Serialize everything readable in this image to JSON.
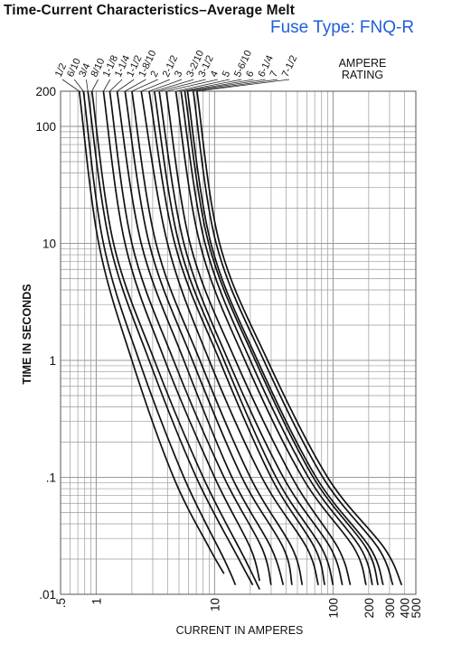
{
  "title": "Time-Current Characteristics–Average Melt",
  "subtitle": "Fuse Type: FNQ-R",
  "legend_title_line1": "AMPERE",
  "legend_title_line2": "RATING",
  "colors": {
    "subtitle": "#1f5fd6",
    "curves": "#111111",
    "grid": "#9a9a9a"
  },
  "chart_data": {
    "type": "line",
    "title": "Time-Current Characteristics–Average Melt",
    "subtitle": "Fuse Type: FNQ-R",
    "xlabel": "CURRENT IN AMPERES",
    "ylabel": "TIME IN SECONDS",
    "x_scale": "log",
    "y_scale": "log",
    "xlim": [
      0.5,
      500
    ],
    "ylim": [
      0.01,
      200
    ],
    "grid": true,
    "legend_title": "AMPERE RATING",
    "legend_placement": "top",
    "x_ticks": [
      {
        "value": 0.5,
        "label": ".5"
      },
      {
        "value": 1,
        "label": "1"
      },
      {
        "value": 10,
        "label": "10"
      },
      {
        "value": 100,
        "label": "100"
      },
      {
        "value": 200,
        "label": "200"
      },
      {
        "value": 300,
        "label": "300"
      },
      {
        "value": 400,
        "label": "400"
      },
      {
        "value": 500,
        "label": "500"
      }
    ],
    "y_ticks": [
      {
        "value": 0.01,
        "label": ".01"
      },
      {
        "value": 0.1,
        "label": ".1"
      },
      {
        "value": 1,
        "label": "1"
      },
      {
        "value": 10,
        "label": "10"
      },
      {
        "value": 100,
        "label": "100"
      },
      {
        "value": 200,
        "label": "200"
      }
    ],
    "series": [
      {
        "name": "1/2",
        "points": [
          [
            0.72,
            200
          ],
          [
            1.05,
            10
          ],
          [
            2.0,
            1
          ],
          [
            4.5,
            0.1
          ],
          [
            9.0,
            0.025
          ],
          [
            12.0,
            0.015
          ]
        ]
      },
      {
        "name": "6/10",
        "points": [
          [
            0.78,
            200
          ],
          [
            1.15,
            10
          ],
          [
            2.3,
            1
          ],
          [
            5.5,
            0.1
          ],
          [
            12.0,
            0.02
          ],
          [
            15.0,
            0.012
          ]
        ]
      },
      {
        "name": "3/4",
        "points": [
          [
            0.85,
            200
          ],
          [
            1.3,
            10
          ],
          [
            2.8,
            1
          ],
          [
            7.0,
            0.1
          ],
          [
            16.0,
            0.02
          ],
          [
            21.0,
            0.012
          ]
        ]
      },
      {
        "name": "8/10",
        "points": [
          [
            0.92,
            200
          ],
          [
            1.4,
            10
          ],
          [
            3.1,
            1
          ],
          [
            8.0,
            0.1
          ],
          [
            18.0,
            0.02
          ],
          [
            24.0,
            0.011
          ]
        ]
      },
      {
        "name": "1-1/8",
        "points": [
          [
            1.15,
            200
          ],
          [
            1.75,
            10
          ],
          [
            3.8,
            1
          ],
          [
            10.0,
            0.1
          ],
          [
            20.0,
            0.025
          ],
          [
            24.0,
            0.013
          ]
        ]
      },
      {
        "name": "1-1/4",
        "points": [
          [
            1.3,
            200
          ],
          [
            2.0,
            10
          ],
          [
            4.5,
            1
          ],
          [
            12.0,
            0.1
          ],
          [
            25.0,
            0.025
          ],
          [
            30.0,
            0.012
          ]
        ]
      },
      {
        "name": "1-1/2",
        "points": [
          [
            1.5,
            200
          ],
          [
            2.4,
            10
          ],
          [
            5.5,
            1
          ],
          [
            14.0,
            0.1
          ],
          [
            30.0,
            0.025
          ],
          [
            38.0,
            0.012
          ]
        ]
      },
      {
        "name": "1-8/10",
        "points": [
          [
            1.75,
            200
          ],
          [
            2.8,
            10
          ],
          [
            6.5,
            1
          ],
          [
            17.0,
            0.1
          ],
          [
            38.0,
            0.025
          ],
          [
            45.0,
            0.012
          ]
        ]
      },
      {
        "name": "2",
        "points": [
          [
            2.0,
            200
          ],
          [
            3.2,
            10
          ],
          [
            7.5,
            1
          ],
          [
            20.0,
            0.1
          ],
          [
            45.0,
            0.025
          ],
          [
            55.0,
            0.012
          ]
        ]
      },
      {
        "name": "2-1/2",
        "points": [
          [
            2.4,
            200
          ],
          [
            4.0,
            10
          ],
          [
            9.0,
            1
          ],
          [
            25.0,
            0.1
          ],
          [
            60.0,
            0.025
          ],
          [
            75.0,
            0.012
          ]
        ]
      },
      {
        "name": "3",
        "points": [
          [
            2.8,
            200
          ],
          [
            4.6,
            10
          ],
          [
            11.0,
            1
          ],
          [
            30.0,
            0.1
          ],
          [
            70.0,
            0.025
          ],
          [
            85.0,
            0.012
          ]
        ]
      },
      {
        "name": "3-2/10",
        "points": [
          [
            3.1,
            200
          ],
          [
            5.0,
            10
          ],
          [
            12.0,
            1
          ],
          [
            33.0,
            0.1
          ],
          [
            80.0,
            0.025
          ],
          [
            100.0,
            0.012
          ]
        ]
      },
      {
        "name": "3-1/2",
        "points": [
          [
            3.4,
            200
          ],
          [
            5.5,
            10
          ],
          [
            13.0,
            1
          ],
          [
            38.0,
            0.1
          ],
          [
            95.0,
            0.025
          ],
          [
            120.0,
            0.012
          ]
        ]
      },
      {
        "name": "4",
        "points": [
          [
            3.9,
            200
          ],
          [
            6.2,
            10
          ],
          [
            15.0,
            1
          ],
          [
            45.0,
            0.1
          ],
          [
            110.0,
            0.025
          ],
          [
            140.0,
            0.012
          ]
        ]
      },
      {
        "name": "5",
        "points": [
          [
            4.7,
            200
          ],
          [
            7.5,
            10
          ],
          [
            18.0,
            1
          ],
          [
            55.0,
            0.1
          ],
          [
            150.0,
            0.025
          ],
          [
            190.0,
            0.012
          ]
        ]
      },
      {
        "name": "5-6/10",
        "points": [
          [
            5.2,
            200
          ],
          [
            8.3,
            10
          ],
          [
            20.0,
            1
          ],
          [
            62.0,
            0.1
          ],
          [
            170.0,
            0.025
          ],
          [
            215.0,
            0.012
          ]
        ]
      },
      {
        "name": "6",
        "points": [
          [
            5.6,
            200
          ],
          [
            8.9,
            10
          ],
          [
            22.0,
            1
          ],
          [
            68.0,
            0.1
          ],
          [
            190.0,
            0.025
          ],
          [
            240.0,
            0.012
          ]
        ]
      },
      {
        "name": "6-1/4",
        "points": [
          [
            5.9,
            200
          ],
          [
            9.3,
            10
          ],
          [
            23.0,
            1
          ],
          [
            72.0,
            0.1
          ],
          [
            205.0,
            0.025
          ],
          [
            265.0,
            0.012
          ]
        ]
      },
      {
        "name": "7",
        "points": [
          [
            6.6,
            200
          ],
          [
            10.3,
            10
          ],
          [
            26.0,
            1
          ],
          [
            82.0,
            0.1
          ],
          [
            240.0,
            0.025
          ],
          [
            320.0,
            0.012
          ]
        ]
      },
      {
        "name": "7-1/2",
        "points": [
          [
            7.1,
            200
          ],
          [
            11.0,
            10
          ],
          [
            28.0,
            1
          ],
          [
            90.0,
            0.1
          ],
          [
            270.0,
            0.025
          ],
          [
            380.0,
            0.012
          ]
        ]
      }
    ]
  }
}
